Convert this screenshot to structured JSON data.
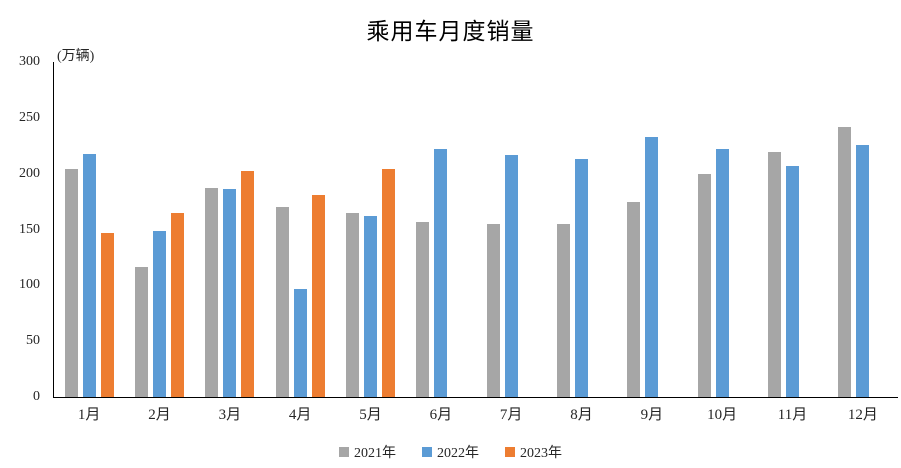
{
  "title": "乘用车月度销量",
  "unit_label": "(万辆)",
  "chart_data": {
    "type": "bar",
    "title": "乘用车月度销量",
    "ylabel": "(万辆)",
    "xlabel": "",
    "categories": [
      "1月",
      "2月",
      "3月",
      "4月",
      "5月",
      "6月",
      "7月",
      "8月",
      "9月",
      "10月",
      "11月",
      "12月"
    ],
    "series": [
      {
        "name": "2021年",
        "color": "#A6A6A6",
        "values": [
          204,
          116,
          187,
          170,
          165,
          157,
          155,
          155,
          175,
          200,
          219,
          242
        ]
      },
      {
        "name": "2022年",
        "color": "#5B9BD5",
        "values": [
          218,
          149,
          186,
          97,
          162,
          222,
          217,
          213,
          233,
          222,
          207,
          226
        ]
      },
      {
        "name": "2023年",
        "color": "#ED7D31",
        "values": [
          147,
          165,
          202,
          181,
          204,
          null,
          null,
          null,
          null,
          null,
          null,
          null
        ]
      }
    ],
    "ylim": [
      0,
      300
    ],
    "ytick_step": 50,
    "grid": false,
    "legend_position": "bottom",
    "axis_color": "#000000",
    "tick_label_color": "#262626"
  }
}
